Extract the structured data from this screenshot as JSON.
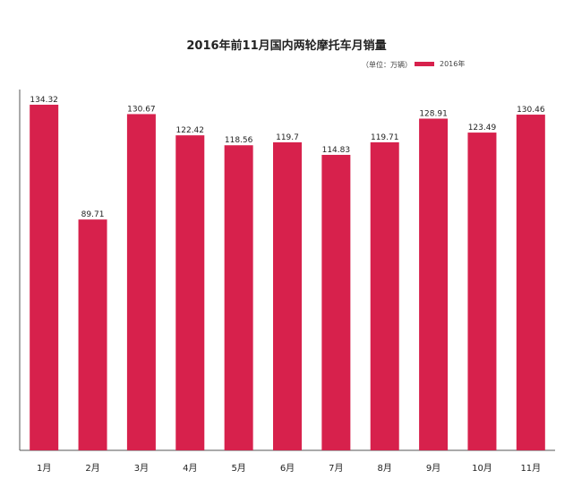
{
  "chart_data": {
    "type": "bar",
    "title": "2016年前11月国内两轮摩托车月销量",
    "unit_note": "（单位：万辆）",
    "legend": {
      "placement": "top-right",
      "entries": [
        "2016年"
      ]
    },
    "categories": [
      "1月",
      "2月",
      "3月",
      "4月",
      "5月",
      "6月",
      "7月",
      "8月",
      "9月",
      "10月",
      "11月"
    ],
    "series": [
      {
        "name": "2016年",
        "color": "#d7214c",
        "values": [
          134.32,
          89.71,
          130.67,
          122.42,
          118.56,
          119.7,
          114.83,
          119.71,
          128.91,
          123.49,
          130.46
        ]
      }
    ],
    "data_labels": [
      "134.32",
      "89.71",
      "130.67",
      "122.42",
      "118.56",
      "119.7",
      "114.83",
      "119.71",
      "128.91",
      "123.49",
      "130.46"
    ],
    "ylim": [
      0,
      135
    ],
    "grid": false,
    "xlabel": "",
    "ylabel": ""
  }
}
